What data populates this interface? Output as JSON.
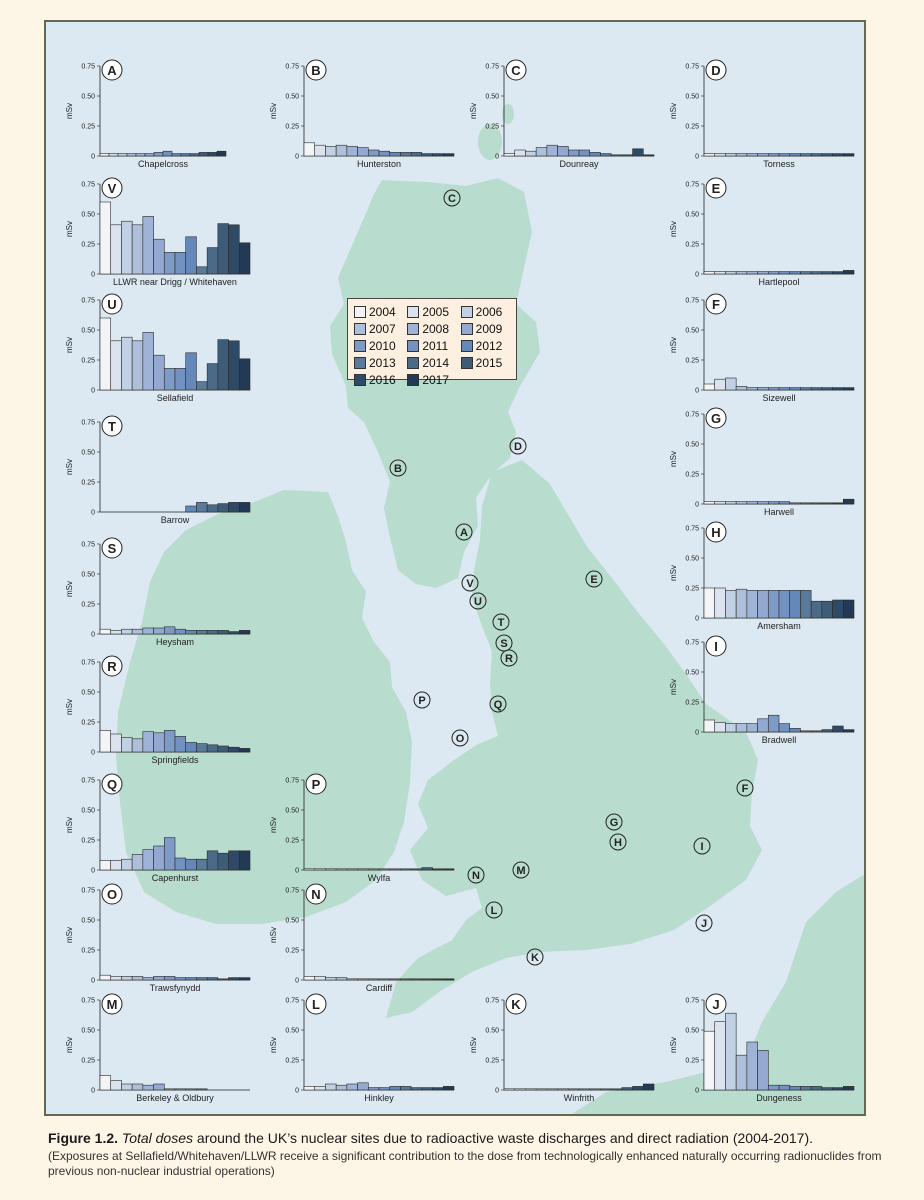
{
  "legend": {
    "years": [
      "2004",
      "2005",
      "2006",
      "2007",
      "2008",
      "2009",
      "2010",
      "2011",
      "2012",
      "2013",
      "2014",
      "2015",
      "2016",
      "2017"
    ],
    "colors": [
      "#f2f4f8",
      "#dbe3ef",
      "#c2d0e4",
      "#aebfdc",
      "#9fb3d6",
      "#93a9d2",
      "#7e9bc8",
      "#7392c2",
      "#6488ba",
      "#5a7a9a",
      "#4a6a88",
      "#3e5c78",
      "#2f4a66",
      "#223a55"
    ]
  },
  "map_labels": [
    "A",
    "B",
    "C",
    "D",
    "E",
    "F",
    "G",
    "H",
    "I",
    "J",
    "K",
    "L",
    "M",
    "N",
    "O",
    "P",
    "Q",
    "R",
    "S",
    "T",
    "U",
    "V"
  ],
  "chart_data": [
    {
      "type": "bar",
      "letter": "A",
      "title": "Chapelcross",
      "ylabel": "mSv",
      "ylim": [
        0,
        0.75
      ],
      "yticks": [
        "0",
        "0.25",
        "0.50",
        "0.75"
      ],
      "categories": [
        "2004",
        "2005",
        "2006",
        "2007",
        "2008",
        "2009",
        "2010",
        "2011",
        "2012",
        "2013",
        "2014",
        "2015",
        "2016",
        "2017"
      ],
      "values": [
        0.02,
        0.02,
        0.02,
        0.02,
        0.02,
        0.02,
        0.03,
        0.04,
        0.02,
        0.02,
        0.02,
        0.03,
        0.03,
        0.04
      ]
    },
    {
      "type": "bar",
      "letter": "B",
      "title": "Hunterston",
      "ylabel": "mSv",
      "ylim": [
        0,
        0.75
      ],
      "yticks": [
        "0",
        "0.25",
        "0.50",
        "0.75"
      ],
      "categories": [
        "2004",
        "2005",
        "2006",
        "2007",
        "2008",
        "2009",
        "2010",
        "2011",
        "2012",
        "2013",
        "2014",
        "2015",
        "2016",
        "2017"
      ],
      "values": [
        0.11,
        0.09,
        0.08,
        0.09,
        0.08,
        0.07,
        0.05,
        0.04,
        0.03,
        0.03,
        0.03,
        0.02,
        0.02,
        0.02
      ]
    },
    {
      "type": "bar",
      "letter": "C",
      "title": "Dounreay",
      "ylabel": "mSv",
      "ylim": [
        0,
        0.75
      ],
      "yticks": [
        "0",
        "0.25",
        "0.50",
        "0.75"
      ],
      "categories": [
        "2004",
        "2005",
        "2006",
        "2007",
        "2008",
        "2009",
        "2010",
        "2011",
        "2012",
        "2013",
        "2014",
        "2015",
        "2016",
        "2017"
      ],
      "values": [
        0.02,
        0.05,
        0.04,
        0.07,
        0.09,
        0.08,
        0.05,
        0.05,
        0.03,
        0.02,
        0.01,
        0.01,
        0.06,
        0.01
      ]
    },
    {
      "type": "bar",
      "letter": "D",
      "title": "Torness",
      "ylabel": "mSv",
      "ylim": [
        0,
        0.75
      ],
      "yticks": [
        "0",
        "0.25",
        "0.50",
        "0.75"
      ],
      "categories": [
        "2004",
        "2005",
        "2006",
        "2007",
        "2008",
        "2009",
        "2010",
        "2011",
        "2012",
        "2013",
        "2014",
        "2015",
        "2016",
        "2017"
      ],
      "values": [
        0.02,
        0.02,
        0.02,
        0.02,
        0.02,
        0.02,
        0.02,
        0.02,
        0.02,
        0.02,
        0.02,
        0.02,
        0.02,
        0.02
      ]
    },
    {
      "type": "bar",
      "letter": "V",
      "title": "LLWR near Drigg / Whitehaven",
      "ylabel": "mSv",
      "ylim": [
        0,
        0.75
      ],
      "yticks": [
        "0",
        "0.25",
        "0.50",
        "0.75"
      ],
      "categories": [
        "2004",
        "2005",
        "2006",
        "2007",
        "2008",
        "2009",
        "2010",
        "2011",
        "2012",
        "2013",
        "2014",
        "2015",
        "2016",
        "2017"
      ],
      "values": [
        0.6,
        0.41,
        0.44,
        0.41,
        0.48,
        0.29,
        0.18,
        0.18,
        0.31,
        0.06,
        0.22,
        0.42,
        0.41,
        0.26
      ]
    },
    {
      "type": "bar",
      "letter": "E",
      "title": "Hartlepool",
      "ylabel": "mSv",
      "ylim": [
        0,
        0.75
      ],
      "yticks": [
        "0",
        "0.25",
        "0.50",
        "0.75"
      ],
      "categories": [
        "2004",
        "2005",
        "2006",
        "2007",
        "2008",
        "2009",
        "2010",
        "2011",
        "2012",
        "2013",
        "2014",
        "2015",
        "2016",
        "2017"
      ],
      "values": [
        0.02,
        0.02,
        0.02,
        0.02,
        0.02,
        0.02,
        0.02,
        0.02,
        0.02,
        0.02,
        0.02,
        0.02,
        0.02,
        0.03
      ]
    },
    {
      "type": "bar",
      "letter": "U",
      "title": "Sellafield",
      "ylabel": "mSv",
      "ylim": [
        0,
        0.75
      ],
      "yticks": [
        "0",
        "0.25",
        "0.50",
        "0.75"
      ],
      "categories": [
        "2004",
        "2005",
        "2006",
        "2007",
        "2008",
        "2009",
        "2010",
        "2011",
        "2012",
        "2013",
        "2014",
        "2015",
        "2016",
        "2017"
      ],
      "values": [
        0.6,
        0.41,
        0.44,
        0.41,
        0.48,
        0.29,
        0.18,
        0.18,
        0.31,
        0.07,
        0.22,
        0.42,
        0.41,
        0.26
      ]
    },
    {
      "type": "bar",
      "letter": "F",
      "title": "Sizewell",
      "ylabel": "mSv",
      "ylim": [
        0,
        0.75
      ],
      "yticks": [
        "0",
        "0.25",
        "0.50",
        "0.75"
      ],
      "categories": [
        "2004",
        "2005",
        "2006",
        "2007",
        "2008",
        "2009",
        "2010",
        "2011",
        "2012",
        "2013",
        "2014",
        "2015",
        "2016",
        "2017"
      ],
      "values": [
        0.05,
        0.09,
        0.1,
        0.03,
        0.02,
        0.02,
        0.02,
        0.02,
        0.02,
        0.02,
        0.02,
        0.02,
        0.02,
        0.02
      ]
    },
    {
      "type": "bar",
      "letter": "T",
      "title": "Barrow",
      "ylabel": "mSv",
      "ylim": [
        0,
        0.75
      ],
      "yticks": [
        "0",
        "0.25",
        "0.50",
        "0.75"
      ],
      "categories": [
        "2004",
        "2005",
        "2006",
        "2007",
        "2008",
        "2009",
        "2010",
        "2011",
        "2012",
        "2013",
        "2014",
        "2015",
        "2016",
        "2017"
      ],
      "values": [
        0,
        0,
        0,
        0,
        0,
        0,
        0,
        0,
        0.05,
        0.08,
        0.06,
        0.07,
        0.08,
        0.08
      ]
    },
    {
      "type": "bar",
      "letter": "G",
      "title": "Harwell",
      "ylabel": "mSv",
      "ylim": [
        0,
        0.75
      ],
      "yticks": [
        "0",
        "0.25",
        "0.50",
        "0.75"
      ],
      "categories": [
        "2004",
        "2005",
        "2006",
        "2007",
        "2008",
        "2009",
        "2010",
        "2011",
        "2012",
        "2013",
        "2014",
        "2015",
        "2016",
        "2017"
      ],
      "values": [
        0.02,
        0.02,
        0.02,
        0.02,
        0.02,
        0.02,
        0.02,
        0.02,
        0.01,
        0.01,
        0.01,
        0.01,
        0.01,
        0.04
      ]
    },
    {
      "type": "bar",
      "letter": "S",
      "title": "Heysham",
      "ylabel": "mSv",
      "ylim": [
        0,
        0.75
      ],
      "yticks": [
        "0",
        "0.25",
        "0.50",
        "0.75"
      ],
      "categories": [
        "2004",
        "2005",
        "2006",
        "2007",
        "2008",
        "2009",
        "2010",
        "2011",
        "2012",
        "2013",
        "2014",
        "2015",
        "2016",
        "2017"
      ],
      "values": [
        0.04,
        0.03,
        0.04,
        0.04,
        0.05,
        0.05,
        0.06,
        0.04,
        0.03,
        0.03,
        0.03,
        0.03,
        0.02,
        0.03
      ]
    },
    {
      "type": "bar",
      "letter": "H",
      "title": "Amersham",
      "ylabel": "mSv",
      "ylim": [
        0,
        0.75
      ],
      "yticks": [
        "0",
        "0.25",
        "0.50",
        "0.75"
      ],
      "categories": [
        "2004",
        "2005",
        "2006",
        "2007",
        "2008",
        "2009",
        "2010",
        "2011",
        "2012",
        "2013",
        "2014",
        "2015",
        "2016",
        "2017"
      ],
      "values": [
        0.25,
        0.25,
        0.23,
        0.24,
        0.23,
        0.23,
        0.23,
        0.23,
        0.23,
        0.23,
        0.14,
        0.14,
        0.15,
        0.15
      ]
    },
    {
      "type": "bar",
      "letter": "R",
      "title": "Springfields",
      "ylabel": "mSv",
      "ylim": [
        0,
        0.75
      ],
      "yticks": [
        "0",
        "0.25",
        "0.50",
        "0.75"
      ],
      "categories": [
        "2004",
        "2005",
        "2006",
        "2007",
        "2008",
        "2009",
        "2010",
        "2011",
        "2012",
        "2013",
        "2014",
        "2015",
        "2016",
        "2017"
      ],
      "values": [
        0.18,
        0.15,
        0.12,
        0.11,
        0.17,
        0.16,
        0.18,
        0.13,
        0.08,
        0.07,
        0.06,
        0.05,
        0.04,
        0.03
      ]
    },
    {
      "type": "bar",
      "letter": "I",
      "title": "Bradwell",
      "ylabel": "mSv",
      "ylim": [
        0,
        0.75
      ],
      "yticks": [
        "0",
        "0.25",
        "0.50",
        "0.75"
      ],
      "categories": [
        "2004",
        "2005",
        "2006",
        "2007",
        "2008",
        "2009",
        "2010",
        "2011",
        "2012",
        "2013",
        "2014",
        "2015",
        "2016",
        "2017"
      ],
      "values": [
        0.1,
        0.08,
        0.07,
        0.07,
        0.07,
        0.11,
        0.14,
        0.07,
        0.03,
        0.01,
        0.01,
        0.02,
        0.05,
        0.02
      ]
    },
    {
      "type": "bar",
      "letter": "Q",
      "title": "Capenhurst",
      "ylabel": "mSv",
      "ylim": [
        0,
        0.75
      ],
      "yticks": [
        "0",
        "0.25",
        "0.50",
        "0.75"
      ],
      "categories": [
        "2004",
        "2005",
        "2006",
        "2007",
        "2008",
        "2009",
        "2010",
        "2011",
        "2012",
        "2013",
        "2014",
        "2015",
        "2016",
        "2017"
      ],
      "values": [
        0.08,
        0.08,
        0.09,
        0.13,
        0.17,
        0.2,
        0.27,
        0.1,
        0.09,
        0.09,
        0.16,
        0.14,
        0.16,
        0.16
      ]
    },
    {
      "type": "bar",
      "letter": "P",
      "title": "Wylfa",
      "ylabel": "mSv",
      "ylim": [
        0,
        0.75
      ],
      "yticks": [
        "0",
        "0.25",
        "0.50",
        "0.75"
      ],
      "categories": [
        "2004",
        "2005",
        "2006",
        "2007",
        "2008",
        "2009",
        "2010",
        "2011",
        "2012",
        "2013",
        "2014",
        "2015",
        "2016",
        "2017"
      ],
      "values": [
        0.01,
        0.01,
        0.01,
        0.01,
        0.01,
        0.01,
        0.01,
        0.01,
        0.01,
        0.01,
        0.01,
        0.02,
        0.01,
        0.01
      ]
    },
    {
      "type": "bar",
      "letter": "O",
      "title": "Trawsfynydd",
      "ylabel": "mSv",
      "ylim": [
        0,
        0.75
      ],
      "yticks": [
        "0",
        "0.25",
        "0.50",
        "0.75"
      ],
      "categories": [
        "2004",
        "2005",
        "2006",
        "2007",
        "2008",
        "2009",
        "2010",
        "2011",
        "2012",
        "2013",
        "2014",
        "2015",
        "2016",
        "2017"
      ],
      "values": [
        0.04,
        0.03,
        0.03,
        0.03,
        0.02,
        0.03,
        0.03,
        0.02,
        0.02,
        0.02,
        0.02,
        0.01,
        0.02,
        0.02
      ]
    },
    {
      "type": "bar",
      "letter": "N",
      "title": "Cardiff",
      "ylabel": "mSv",
      "ylim": [
        0,
        0.75
      ],
      "yticks": [
        "0",
        "0.25",
        "0.50",
        "0.75"
      ],
      "categories": [
        "2004",
        "2005",
        "2006",
        "2007",
        "2008",
        "2009",
        "2010",
        "2011",
        "2012",
        "2013",
        "2014",
        "2015",
        "2016",
        "2017"
      ],
      "values": [
        0.03,
        0.03,
        0.02,
        0.02,
        0.01,
        0.01,
        0.01,
        0.01,
        0.01,
        0.01,
        0.01,
        0.01,
        0.01,
        0.01
      ]
    },
    {
      "type": "bar",
      "letter": "M",
      "title": "Berkeley & Oldbury",
      "ylabel": "mSv",
      "ylim": [
        0,
        0.75
      ],
      "yticks": [
        "0",
        "0.25",
        "0.50",
        "0.75"
      ],
      "categories": [
        "2004",
        "2005",
        "2006",
        "2007",
        "2008",
        "2009",
        "2010",
        "2011",
        "2012",
        "2013",
        "2014",
        "2015",
        "2016",
        "2017"
      ],
      "values": [
        0.12,
        0.08,
        0.05,
        0.05,
        0.04,
        0.05,
        0.01,
        0.01,
        0.01,
        0.01,
        0,
        0,
        0,
        0
      ]
    },
    {
      "type": "bar",
      "letter": "L",
      "title": "Hinkley",
      "ylabel": "mSv",
      "ylim": [
        0,
        0.75
      ],
      "yticks": [
        "0",
        "0.25",
        "0.50",
        "0.75"
      ],
      "categories": [
        "2004",
        "2005",
        "2006",
        "2007",
        "2008",
        "2009",
        "2010",
        "2011",
        "2012",
        "2013",
        "2014",
        "2015",
        "2016",
        "2017"
      ],
      "values": [
        0.03,
        0.03,
        0.05,
        0.04,
        0.05,
        0.06,
        0.02,
        0.02,
        0.03,
        0.03,
        0.02,
        0.02,
        0.02,
        0.03
      ]
    },
    {
      "type": "bar",
      "letter": "K",
      "title": "Winfrith",
      "ylabel": "mSv",
      "ylim": [
        0,
        0.75
      ],
      "yticks": [
        "0",
        "0.25",
        "0.50",
        "0.75"
      ],
      "categories": [
        "2004",
        "2005",
        "2006",
        "2007",
        "2008",
        "2009",
        "2010",
        "2011",
        "2012",
        "2013",
        "2014",
        "2015",
        "2016",
        "2017"
      ],
      "values": [
        0.01,
        0.01,
        0.01,
        0.01,
        0.01,
        0.01,
        0.01,
        0.01,
        0.01,
        0.01,
        0.01,
        0.02,
        0.03,
        0.05
      ]
    },
    {
      "type": "bar",
      "letter": "J",
      "title": "Dungeness",
      "ylabel": "mSv",
      "ylim": [
        0,
        0.75
      ],
      "yticks": [
        "0",
        "0.25",
        "0.50",
        "0.75"
      ],
      "categories": [
        "2004",
        "2005",
        "2006",
        "2007",
        "2008",
        "2009",
        "2010",
        "2011",
        "2012",
        "2013",
        "2014",
        "2015",
        "2016",
        "2017"
      ],
      "values": [
        0.49,
        0.57,
        0.64,
        0.29,
        0.4,
        0.33,
        0.04,
        0.04,
        0.03,
        0.03,
        0.03,
        0.02,
        0.02,
        0.03
      ]
    }
  ],
  "caption": {
    "figure": "Figure 1.2.",
    "emphasis": "Total doses",
    "text": " around the UK’s nuclear sites due to radioactive waste discharges and direct radiation (2004-2017).",
    "note": "(Exposures at Sellafield/Whitehaven/LLWR receive a significant contribution to the dose from technologically enhanced naturally occurring radionuclides from previous non-nuclear industrial operations)"
  }
}
